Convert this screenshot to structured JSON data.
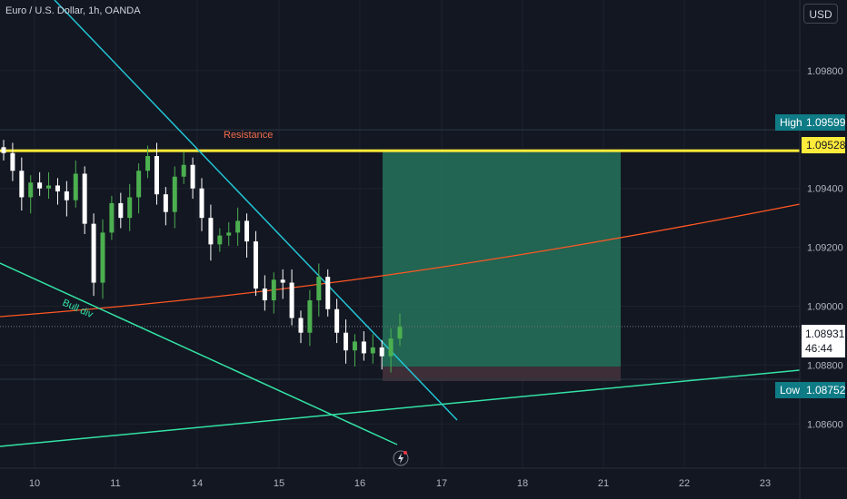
{
  "header": {
    "symbol_title": "Euro / U.S. Dollar, 1h, OANDA",
    "currency": "USD"
  },
  "colors": {
    "background": "#131722",
    "grid": "#1e222d",
    "bull": "#26a69a",
    "bull_candle": "#4caf50",
    "bear_candle": "#ffffff",
    "resistance": "#ffeb3b",
    "trendline": "#22c5d6",
    "support": "#33e3a5",
    "ma": "#ff5722",
    "target_zone": "#26735b",
    "stop_zone": "#3d2e38",
    "label_high": "#0e7b85",
    "label_low": "#0e7b85"
  },
  "chart_data": {
    "type": "candlestick",
    "x_tick_labels": [
      "10",
      "11",
      "14",
      "15",
      "16",
      "17",
      "18",
      "21",
      "22",
      "23"
    ],
    "y_tick_labels": [
      "1.09800",
      "1.09400",
      "1.09200",
      "1.09000",
      "1.08800",
      "1.08600"
    ],
    "ylim": [
      1.0845,
      1.1004
    ],
    "annotations": {
      "resistance_label": "Resistance",
      "bull_div_label": "Bull div"
    },
    "price_labels": {
      "high_label": "High",
      "high_value": "1.09599",
      "resistance_value": "1.09528",
      "current_value": "1.08931",
      "countdown": "46:44",
      "low_label": "Low",
      "low_value": "1.08752"
    },
    "levels": {
      "high": 1.09599,
      "resistance": 1.09528,
      "current": 1.08931,
      "low": 1.08752,
      "target": 1.09528,
      "entry": 1.08931,
      "stop": 1.08795
    },
    "candles_close_path": [
      1.0952,
      1.0946,
      1.0937,
      1.0942,
      1.094,
      1.0941,
      1.0939,
      1.0936,
      1.0945,
      1.0928,
      1.0908,
      1.0925,
      1.0935,
      1.093,
      1.0937,
      1.0946,
      1.0951,
      1.0938,
      1.0932,
      1.0944,
      1.0948,
      1.094,
      1.093,
      1.0921,
      1.0924,
      1.0925,
      1.0929,
      1.0922,
      1.0906,
      1.0902,
      1.0909,
      1.0908,
      1.0896,
      1.0891,
      1.0902,
      1.091,
      1.0899,
      1.0891,
      1.0885,
      1.0888,
      1.0884,
      1.0886,
      1.0883,
      1.0889,
      1.0893
    ]
  }
}
